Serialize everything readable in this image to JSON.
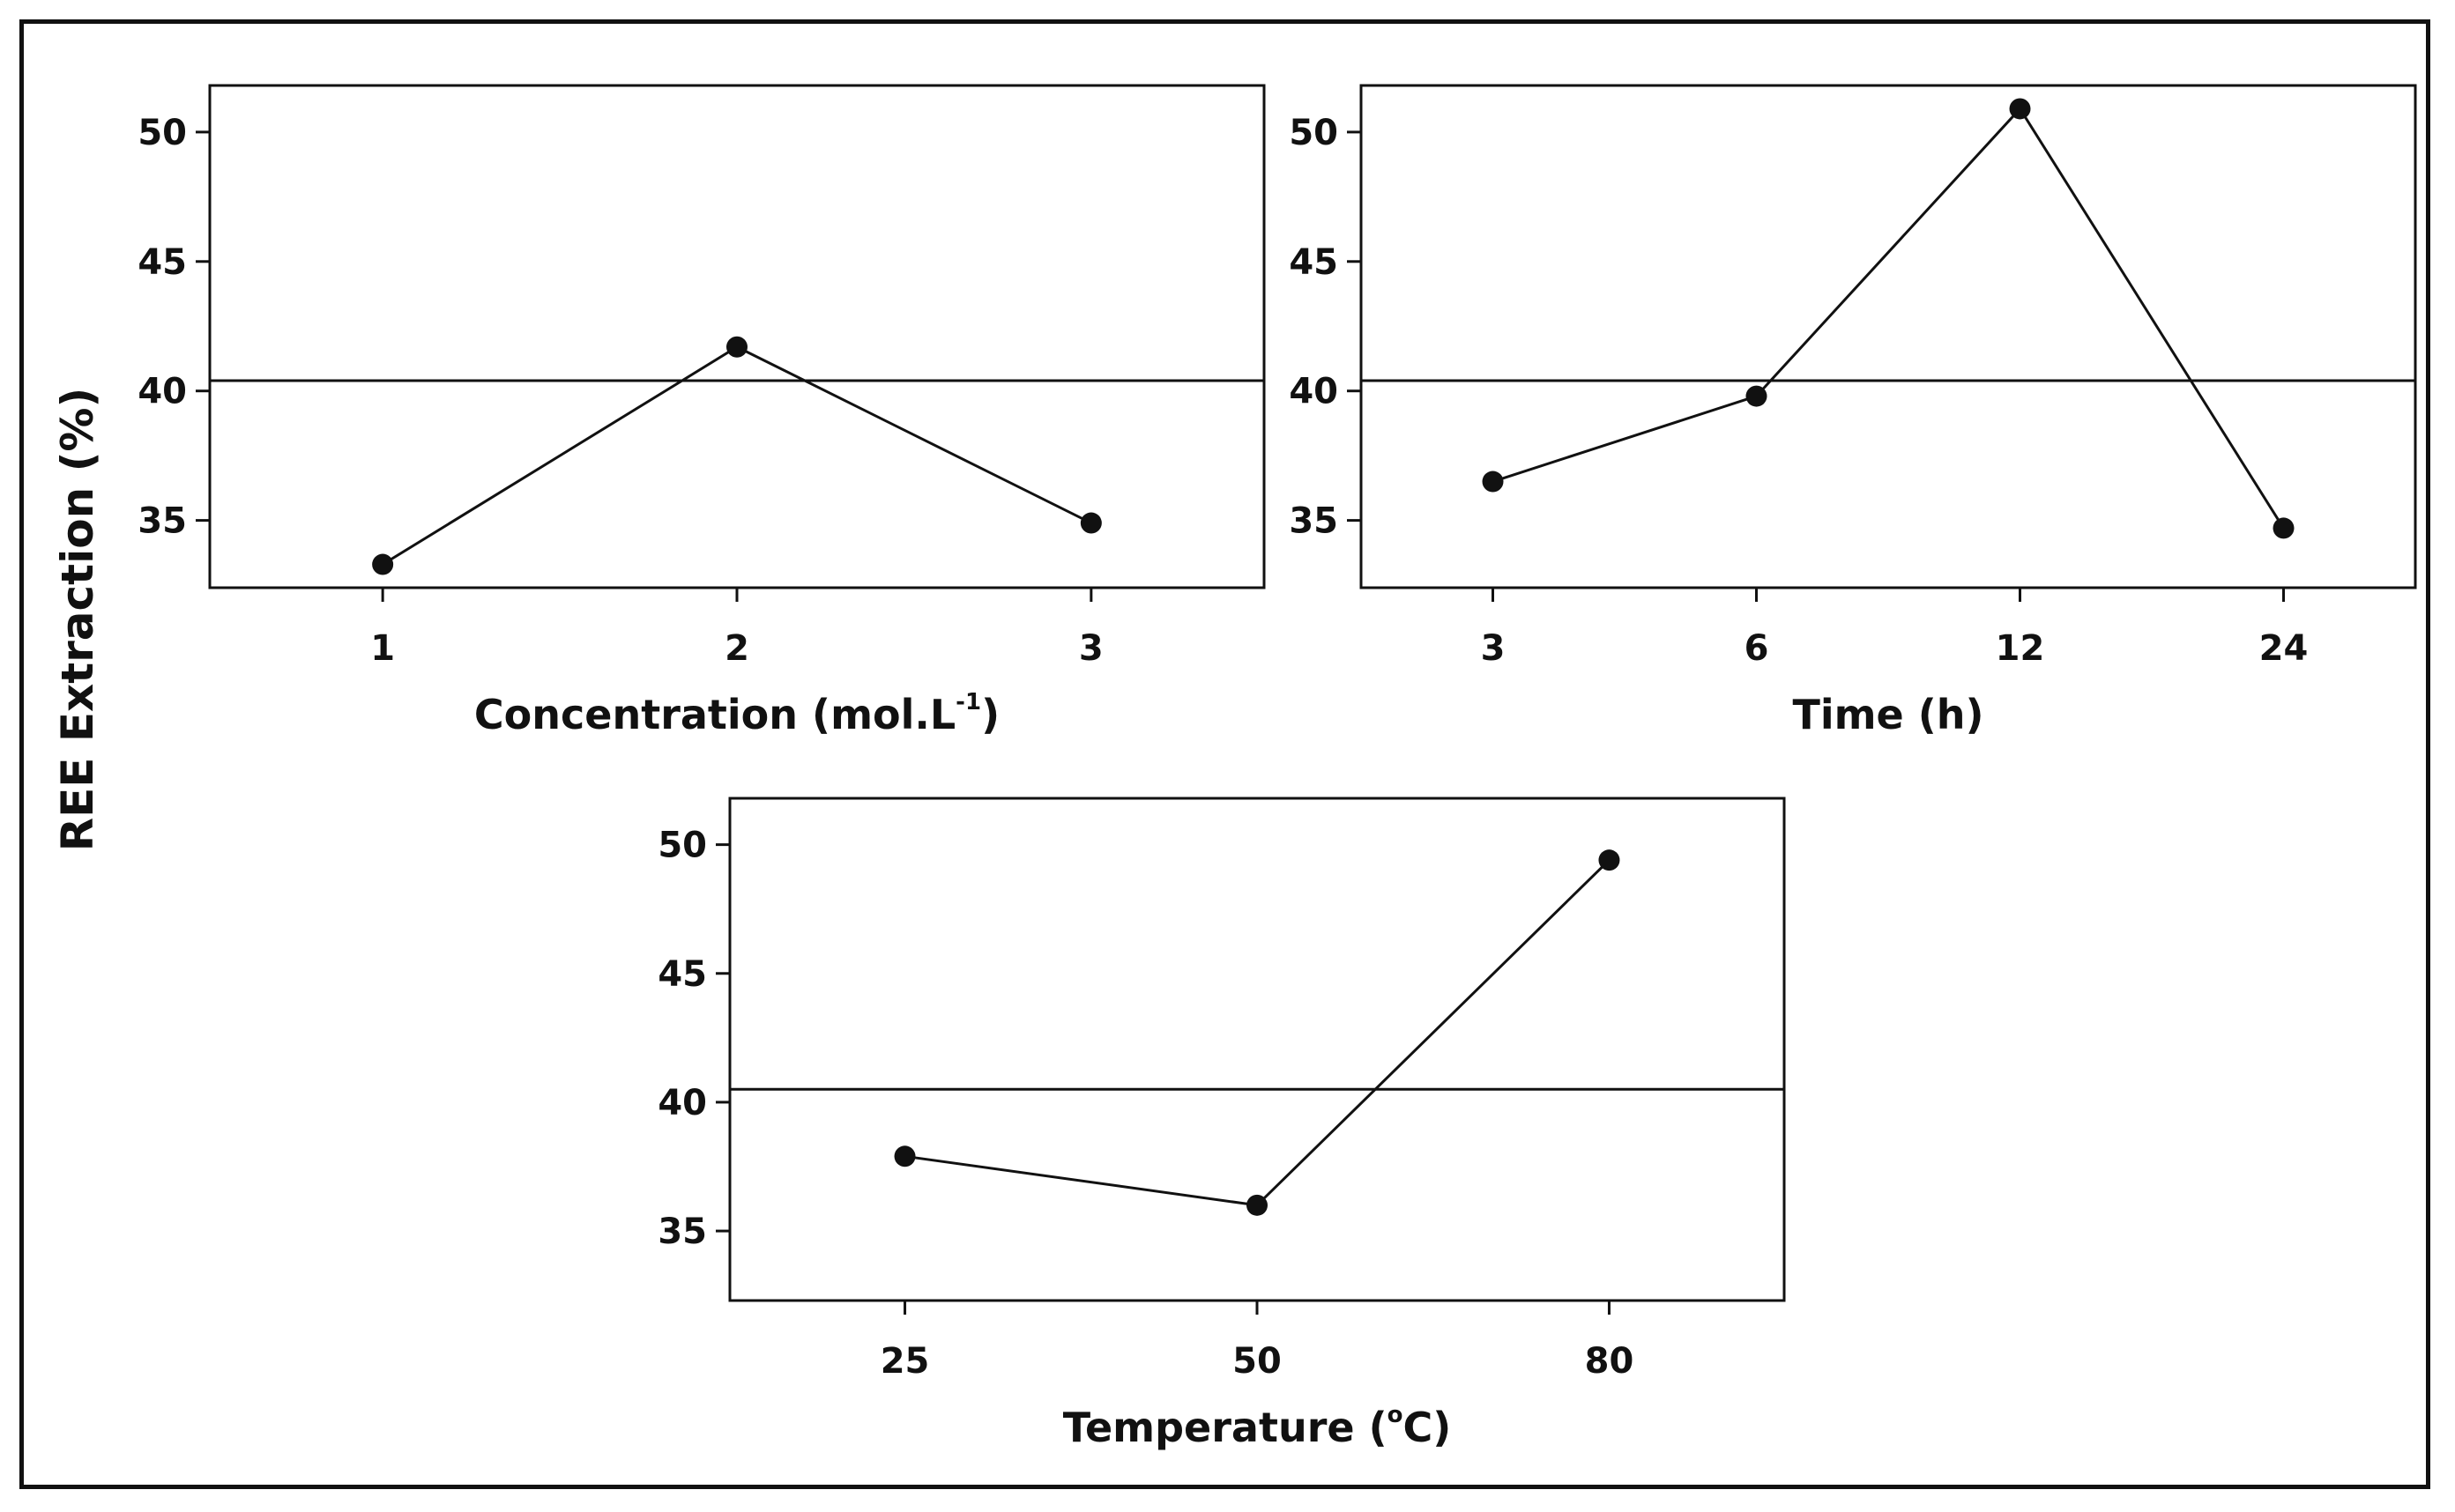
{
  "figure": {
    "ylabel": "REE Extraction (%)",
    "colors": {
      "ink": "#111111",
      "background": "#ffffff"
    }
  },
  "chart_data": [
    {
      "type": "line",
      "title": "",
      "xlabel": "Concentration (mol.L",
      "xlabel_superscript": "-1",
      "xlabel_suffix": ")",
      "ylabel": "REE Extraction (%)",
      "categories": [
        "1",
        "2",
        "3"
      ],
      "values": [
        33.3,
        41.7,
        34.9
      ],
      "mean_line": 40.4,
      "yticks": [
        35,
        40,
        45,
        50
      ],
      "ylim": [
        32.4,
        51.8
      ],
      "grid": false
    },
    {
      "type": "line",
      "title": "",
      "xlabel": "Time (h)",
      "xlabel_superscript": "",
      "xlabel_suffix": "",
      "ylabel": "REE Extraction (%)",
      "categories": [
        "3",
        "6",
        "12",
        "24"
      ],
      "values": [
        36.5,
        39.8,
        50.9,
        34.7
      ],
      "mean_line": 40.4,
      "yticks": [
        35,
        40,
        45,
        50
      ],
      "ylim": [
        32.4,
        51.8
      ],
      "grid": false
    },
    {
      "type": "line",
      "title": "",
      "xlabel": "Temperature (",
      "xlabel_superscript": "o",
      "xlabel_suffix": "C)",
      "ylabel": "REE Extraction (%)",
      "categories": [
        "25",
        "50",
        "80"
      ],
      "values": [
        37.9,
        36.0,
        49.4
      ],
      "mean_line": 40.5,
      "yticks": [
        35,
        40,
        45,
        50
      ],
      "ylim": [
        32.3,
        51.8
      ],
      "grid": false
    }
  ]
}
